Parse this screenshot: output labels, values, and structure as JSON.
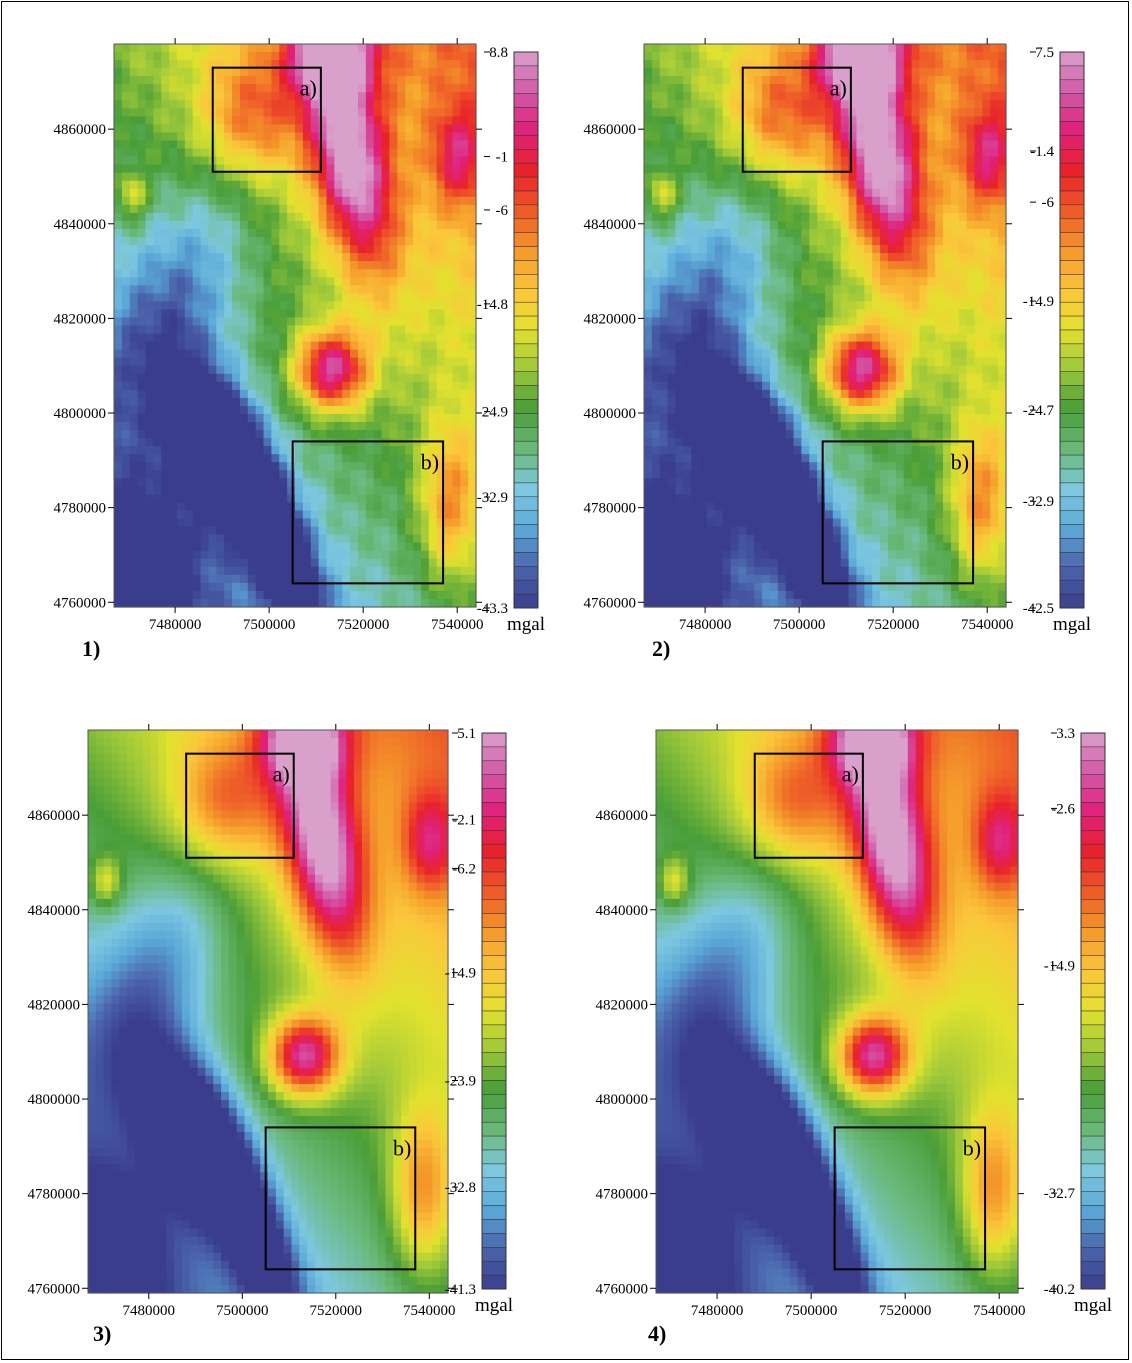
{
  "chart_data": [
    {
      "type": "heatmap",
      "panel_label": "1)",
      "x_ticks": [
        "7480000",
        "7500000",
        "7520000",
        "7540000"
      ],
      "y_ticks": [
        "4760000",
        "4780000",
        "4800000",
        "4820000",
        "4840000",
        "4860000"
      ],
      "xlim": [
        7467000,
        7544000
      ],
      "ylim": [
        4759000,
        4878000
      ],
      "colorbar_labels": [
        "8.8",
        "-1",
        "-6",
        "-14.8",
        "-24.9",
        "-32.9",
        "-43.3"
      ],
      "colorbar_unit": "mgal",
      "colorbar_range": [
        -43.3,
        8.8
      ],
      "boxes": [
        {
          "label": "a)",
          "x": [
            7488000,
            7511000
          ],
          "y": [
            4851000,
            4873000
          ]
        },
        {
          "label": "b)",
          "x": [
            7505000,
            7537000
          ],
          "y": [
            4764000,
            4794000
          ]
        }
      ]
    },
    {
      "type": "heatmap",
      "panel_label": "2)",
      "x_ticks": [
        "7480000",
        "7500000",
        "7520000",
        "7540000"
      ],
      "y_ticks": [
        "4760000",
        "4780000",
        "4800000",
        "4820000",
        "4840000",
        "4860000"
      ],
      "xlim": [
        7467000,
        7544000
      ],
      "ylim": [
        4759000,
        4878000
      ],
      "colorbar_labels": [
        "7.5",
        "-1.4",
        "-6",
        "-14.9",
        "-24.7",
        "-32.9",
        "-42.5"
      ],
      "colorbar_unit": "mgal",
      "colorbar_range": [
        -42.5,
        7.5
      ],
      "boxes": [
        {
          "label": "a)",
          "x": [
            7488000,
            7511000
          ],
          "y": [
            4851000,
            4873000
          ]
        },
        {
          "label": "b)",
          "x": [
            7505000,
            7537000
          ],
          "y": [
            4764000,
            4794000
          ]
        }
      ]
    },
    {
      "type": "heatmap",
      "panel_label": "3)",
      "x_ticks": [
        "7480000",
        "7500000",
        "7520000",
        "7540000"
      ],
      "y_ticks": [
        "4760000",
        "4780000",
        "4800000",
        "4820000",
        "4840000",
        "4860000"
      ],
      "xlim": [
        7467000,
        7544000
      ],
      "ylim": [
        4759000,
        4878000
      ],
      "colorbar_labels": [
        "5.1",
        "-2.1",
        "-6.2",
        "-14.9",
        "-23.9",
        "-32.8",
        "-41.3"
      ],
      "colorbar_unit": "mgal",
      "colorbar_range": [
        -41.3,
        5.1
      ],
      "boxes": [
        {
          "label": "a)",
          "x": [
            7488000,
            7511000
          ],
          "y": [
            4851000,
            4873000
          ]
        },
        {
          "label": "b)",
          "x": [
            7505000,
            7537000
          ],
          "y": [
            4764000,
            4794000
          ]
        }
      ]
    },
    {
      "type": "heatmap",
      "panel_label": "4)",
      "x_ticks": [
        "7480000",
        "7500000",
        "7520000",
        "7540000"
      ],
      "y_ticks": [
        "4760000",
        "4780000",
        "4800000",
        "4820000",
        "4840000",
        "4860000"
      ],
      "xlim": [
        7467000,
        7544000
      ],
      "ylim": [
        4759000,
        4878000
      ],
      "colorbar_labels": [
        "3.3",
        "-2.6",
        "-14.9",
        "-32.7",
        "-40.2"
      ],
      "colorbar_unit": "mgal",
      "colorbar_range": [
        -40.2,
        3.3
      ],
      "boxes": [
        {
          "label": "a)",
          "x": [
            7488000,
            7511000
          ],
          "y": [
            4851000,
            4873000
          ]
        },
        {
          "label": "b)",
          "x": [
            7505000,
            7537000
          ],
          "y": [
            4764000,
            4794000
          ]
        }
      ]
    }
  ],
  "colors": {
    "palette": [
      "#3a3d8c",
      "#4a63ab",
      "#5aa8d8",
      "#7ec8df",
      "#6ab97a",
      "#4a9e38",
      "#9cc83a",
      "#e2e22e",
      "#fbc63c",
      "#f49a2a",
      "#ee5a28",
      "#e8222a",
      "#e0207a",
      "#d25aa8",
      "#daa0cc"
    ]
  }
}
